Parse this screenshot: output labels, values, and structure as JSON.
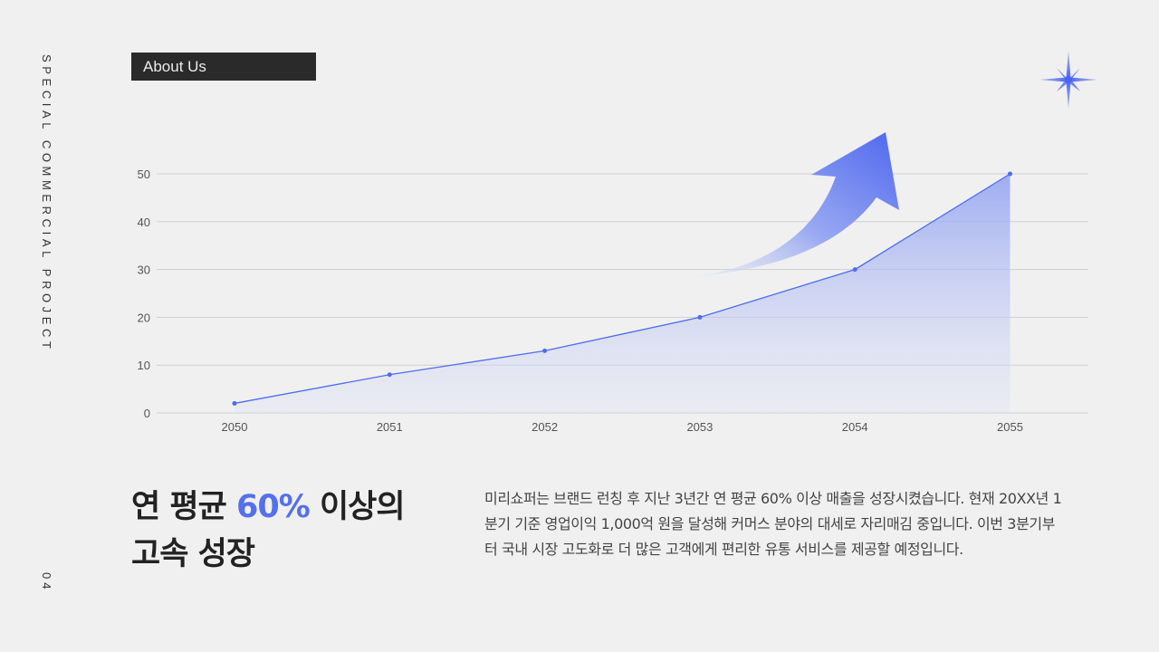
{
  "side": {
    "vertical_label": "SPECIAL COMMERCIAL PROJECT",
    "page_number": "04"
  },
  "header": {
    "tag_label": "About Us",
    "decoration_icon": "sparkle-star-icon"
  },
  "colors": {
    "accent": "#5570ea",
    "line": "#4f6cf0",
    "background": "#f0f0f0",
    "tag_bg": "#2a2a2a",
    "grid": "#d0d0d0"
  },
  "chart_data": {
    "type": "area",
    "title": "",
    "xlabel": "",
    "ylabel": "",
    "categories": [
      "2050",
      "2051",
      "2052",
      "2053",
      "2054",
      "2055"
    ],
    "values": [
      2,
      8,
      13,
      20,
      30,
      50
    ],
    "yticks": [
      "0",
      "10",
      "20",
      "30",
      "40",
      "50"
    ],
    "ylim": [
      0,
      50
    ],
    "grid": true,
    "legend": "none",
    "annotations": [
      "upward-trend-arrow"
    ]
  },
  "main": {
    "headline_part1": "연 평균 ",
    "headline_accent": "60%",
    "headline_part2": " 이상의",
    "headline_line2": "고속 성장",
    "description": "미리쇼퍼는 브랜드 런칭 후 지난 3년간 연 평균 60% 이상 매출을 성장시켰습니다. 현재 20XX년 1분기 기준 영업이익 1,000억 원을 달성해 커머스 분야의 대세로 자리매김 중입니다. 이번 3분기부터 국내 시장 고도화로 더 많은 고객에게 편리한 유통 서비스를 제공할 예정입니다."
  }
}
